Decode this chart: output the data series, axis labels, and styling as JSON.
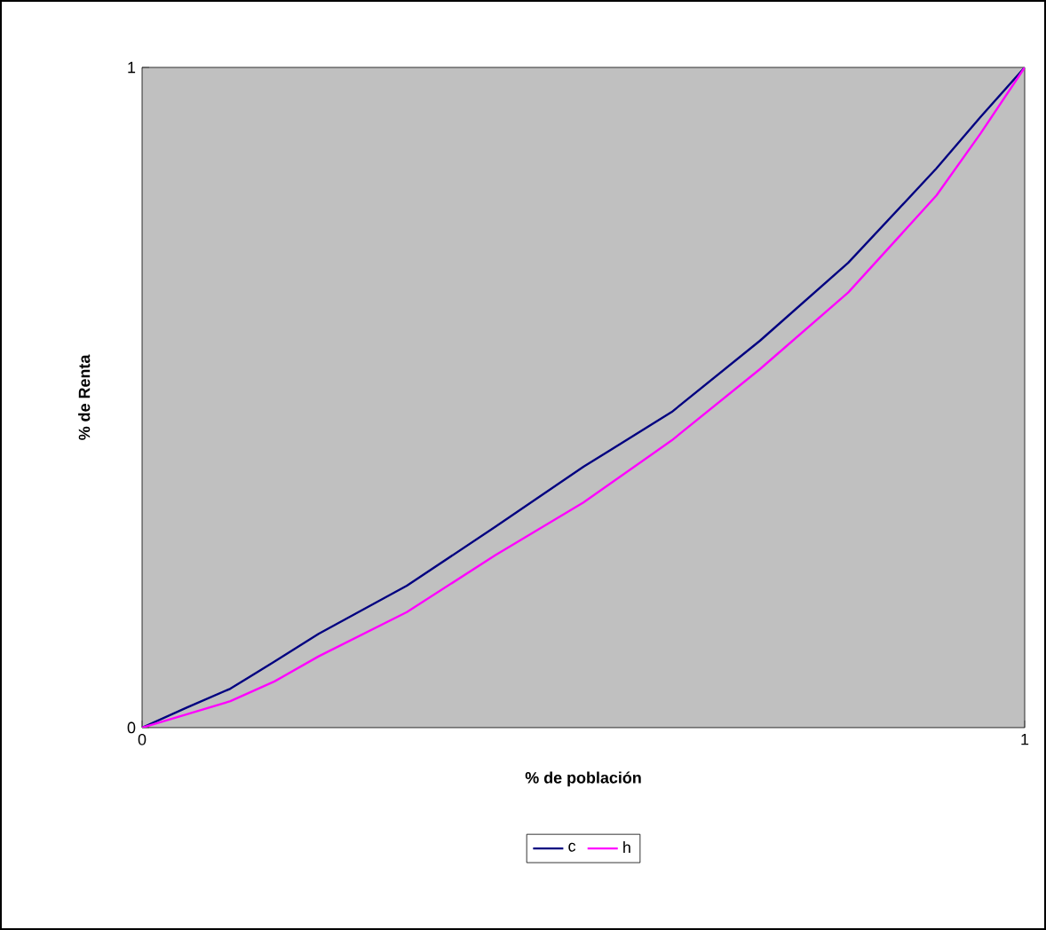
{
  "chart_data": {
    "type": "line",
    "xlabel": "% de población",
    "ylabel": "% de Renta",
    "x": [
      0,
      0.05,
      0.1,
      0.15,
      0.2,
      0.3,
      0.4,
      0.5,
      0.6,
      0.7,
      0.8,
      0.9,
      0.95,
      1
    ],
    "series": [
      {
        "name": "c",
        "color": "#000080",
        "values": [
          0,
          0.03,
          0.059,
          0.1,
          0.142,
          0.215,
          0.304,
          0.395,
          0.478,
          0.586,
          0.704,
          0.847,
          0.925,
          1
        ]
      },
      {
        "name": "h",
        "color": "#ff00ff",
        "values": [
          0,
          0.02,
          0.04,
          0.07,
          0.108,
          0.175,
          0.261,
          0.341,
          0.435,
          0.543,
          0.659,
          0.806,
          0.9,
          1
        ]
      }
    ],
    "xlim": [
      0,
      1
    ],
    "ylim": [
      0,
      1
    ],
    "xticks": [
      0,
      1
    ],
    "yticks": [
      0,
      1
    ],
    "grid": false,
    "legend": "bottom",
    "marker": "none",
    "line_style": "solid"
  }
}
